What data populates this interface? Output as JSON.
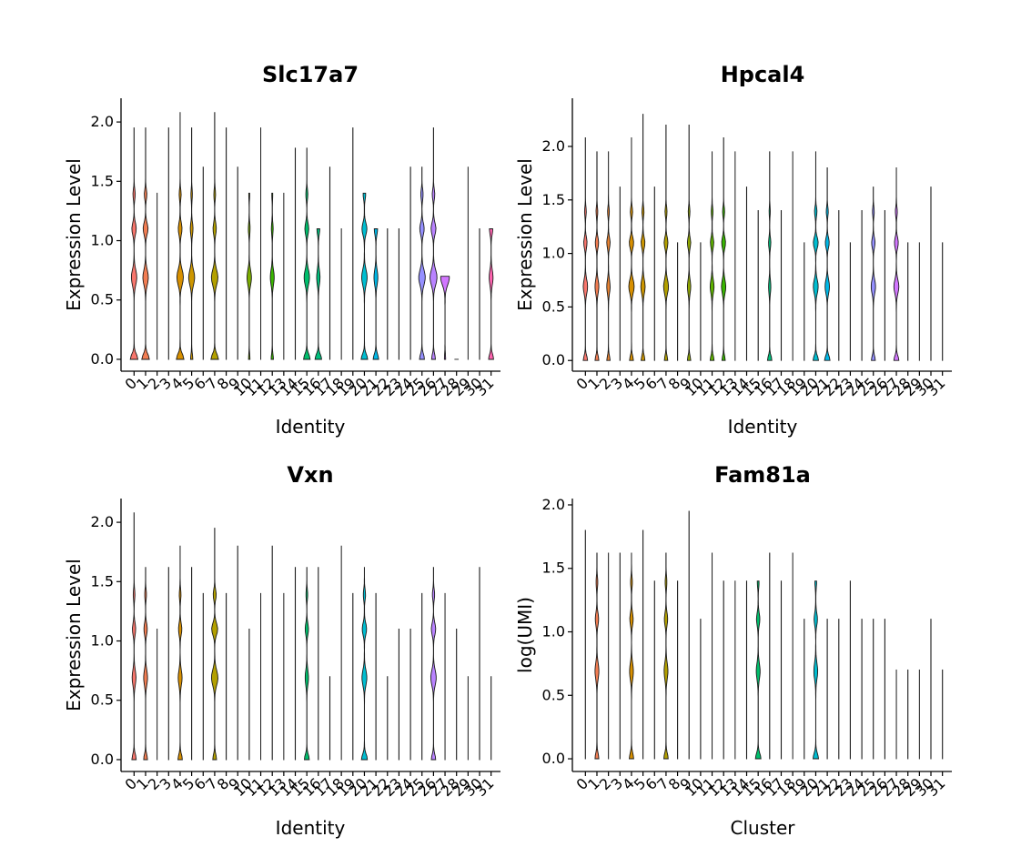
{
  "panels": [
    {
      "id": "slc17a7",
      "title": "Slc17a7",
      "xlabel": "Identity",
      "ylabel": "Expression Level",
      "ylim": [
        -0.1,
        2.2
      ],
      "yticks": [
        "0.0",
        "0.5",
        "1.0",
        "1.5",
        "2.0"
      ],
      "categories": [
        "0",
        "1",
        "2",
        "3",
        "4",
        "5",
        "6",
        "7",
        "8",
        "9",
        "10",
        "11",
        "12",
        "13",
        "14",
        "15",
        "16",
        "17",
        "18",
        "19",
        "20",
        "21",
        "22",
        "23",
        "24",
        "25",
        "26",
        "27",
        "28",
        "29",
        "30",
        "31"
      ],
      "max": [
        1.95,
        1.95,
        1.4,
        1.95,
        2.08,
        1.95,
        1.62,
        2.08,
        1.95,
        1.62,
        1.4,
        1.95,
        1.4,
        1.4,
        1.78,
        1.78,
        1.1,
        1.62,
        1.1,
        1.95,
        1.4,
        1.1,
        1.1,
        1.1,
        1.62,
        1.62,
        1.95,
        0.7,
        0,
        1.62,
        1.1,
        1.1
      ],
      "shape": [
        [
          0.7,
          0.5,
          0.4
        ],
        [
          0.7,
          0.5,
          0.45
        ],
        [
          0,
          0,
          0
        ],
        [
          0,
          0,
          0
        ],
        [
          0.7,
          0.6,
          0.35
        ],
        [
          0.2,
          0.55,
          0.25
        ],
        [
          0,
          0,
          0
        ],
        [
          0.7,
          0.6,
          0.3
        ],
        [
          0,
          0,
          0
        ],
        [
          0,
          0,
          0
        ],
        [
          0.12,
          0.4,
          0.15
        ],
        [
          0,
          0,
          0
        ],
        [
          0.2,
          0.35,
          0.15
        ],
        [
          0,
          0,
          0
        ],
        [
          0,
          0,
          0
        ],
        [
          0.6,
          0.5,
          0.35
        ],
        [
          0.6,
          0.3,
          0.25
        ],
        [
          0,
          0,
          0
        ],
        [
          0,
          0,
          0
        ],
        [
          0,
          0,
          0
        ],
        [
          0.6,
          0.5,
          0.45
        ],
        [
          0.5,
          0.35,
          0.3
        ],
        [
          0,
          0,
          0
        ],
        [
          0,
          0,
          0
        ],
        [
          0,
          0,
          0
        ],
        [
          0.45,
          0.6,
          0.4
        ],
        [
          0.35,
          0.65,
          0.45
        ],
        [
          0.1,
          0.8,
          0.6
        ],
        [
          0,
          0,
          0
        ],
        [
          0,
          0,
          0
        ],
        [
          0,
          0,
          0
        ],
        [
          0.45,
          0.35,
          0.3
        ]
      ]
    },
    {
      "id": "hpcal4",
      "title": "Hpcal4",
      "xlabel": "Identity",
      "ylabel": "Expression Level",
      "ylim": [
        -0.1,
        2.45
      ],
      "yticks": [
        "0.0",
        "0.5",
        "1.0",
        "1.5",
        "2.0"
      ],
      "categories": [
        "0",
        "1",
        "2",
        "3",
        "4",
        "5",
        "6",
        "7",
        "8",
        "9",
        "10",
        "11",
        "12",
        "13",
        "14",
        "15",
        "16",
        "17",
        "18",
        "19",
        "20",
        "21",
        "22",
        "23",
        "24",
        "25",
        "26",
        "27",
        "28",
        "29",
        "30",
        "31"
      ],
      "max": [
        2.08,
        1.95,
        1.95,
        1.62,
        2.08,
        2.3,
        1.62,
        2.2,
        1.1,
        2.2,
        1.1,
        1.95,
        2.08,
        1.95,
        1.62,
        1.4,
        1.95,
        1.4,
        1.95,
        1.1,
        1.95,
        1.8,
        1.4,
        1.1,
        1.4,
        1.62,
        1.4,
        1.8,
        1.1,
        1.1,
        1.62,
        1.1
      ],
      "shape": [
        [
          0.4,
          0.4,
          0.3
        ],
        [
          0.35,
          0.35,
          0.3
        ],
        [
          0.3,
          0.3,
          0.3
        ],
        [
          0,
          0,
          0
        ],
        [
          0.35,
          0.5,
          0.4
        ],
        [
          0.35,
          0.4,
          0.35
        ],
        [
          0,
          0,
          0
        ],
        [
          0.3,
          0.45,
          0.35
        ],
        [
          0,
          0,
          0
        ],
        [
          0.3,
          0.3,
          0.3
        ],
        [
          0,
          0,
          0
        ],
        [
          0.35,
          0.35,
          0.3
        ],
        [
          0.3,
          0.4,
          0.35
        ],
        [
          0,
          0,
          0
        ],
        [
          0,
          0,
          0
        ],
        [
          0,
          0,
          0
        ],
        [
          0.4,
          0.2,
          0.2
        ],
        [
          0,
          0,
          0
        ],
        [
          0,
          0,
          0
        ],
        [
          0,
          0,
          0
        ],
        [
          0.5,
          0.45,
          0.45
        ],
        [
          0.5,
          0.4,
          0.35
        ],
        [
          0,
          0,
          0
        ],
        [
          0,
          0,
          0
        ],
        [
          0,
          0,
          0
        ],
        [
          0.35,
          0.4,
          0.3
        ],
        [
          0,
          0,
          0
        ],
        [
          0.45,
          0.45,
          0.35
        ],
        [
          0,
          0,
          0
        ],
        [
          0,
          0,
          0
        ],
        [
          0,
          0,
          0
        ],
        [
          0,
          0,
          0
        ]
      ]
    },
    {
      "id": "vxn",
      "title": "Vxn",
      "xlabel": "Identity",
      "ylabel": "Expression Level",
      "ylim": [
        -0.1,
        2.2
      ],
      "yticks": [
        "0.0",
        "0.5",
        "1.0",
        "1.5",
        "2.0"
      ],
      "categories": [
        "0",
        "1",
        "2",
        "3",
        "4",
        "5",
        "6",
        "7",
        "8",
        "9",
        "10",
        "11",
        "12",
        "13",
        "14",
        "15",
        "16",
        "17",
        "18",
        "19",
        "20",
        "21",
        "22",
        "23",
        "24",
        "25",
        "26",
        "27",
        "28",
        "29",
        "30",
        "31"
      ],
      "max": [
        2.08,
        1.62,
        1.1,
        1.62,
        1.8,
        1.62,
        1.4,
        1.95,
        1.4,
        1.8,
        1.1,
        1.4,
        1.8,
        1.4,
        1.62,
        1.62,
        1.62,
        0.7,
        1.8,
        1.4,
        1.62,
        1.4,
        0.7,
        1.1,
        1.1,
        1.4,
        1.62,
        1.4,
        1.1,
        0.7,
        1.62,
        0.7
      ],
      "shape": [
        [
          0.4,
          0.35,
          0.3
        ],
        [
          0.35,
          0.35,
          0.3
        ],
        [
          0,
          0,
          0
        ],
        [
          0,
          0,
          0
        ],
        [
          0.4,
          0.35,
          0.3
        ],
        [
          0,
          0,
          0
        ],
        [
          0,
          0,
          0
        ],
        [
          0.35,
          0.6,
          0.55
        ],
        [
          0,
          0,
          0
        ],
        [
          0,
          0,
          0
        ],
        [
          0,
          0,
          0
        ],
        [
          0,
          0,
          0
        ],
        [
          0,
          0,
          0
        ],
        [
          0,
          0,
          0
        ],
        [
          0,
          0,
          0
        ],
        [
          0.45,
          0.3,
          0.3
        ],
        [
          0,
          0,
          0
        ],
        [
          0,
          0,
          0
        ],
        [
          0,
          0,
          0
        ],
        [
          0,
          0,
          0
        ],
        [
          0.55,
          0.45,
          0.4
        ],
        [
          0,
          0,
          0
        ],
        [
          0,
          0,
          0
        ],
        [
          0,
          0,
          0
        ],
        [
          0,
          0,
          0
        ],
        [
          0,
          0,
          0
        ],
        [
          0.4,
          0.5,
          0.4
        ],
        [
          0,
          0,
          0
        ],
        [
          0,
          0,
          0
        ],
        [
          0,
          0,
          0
        ],
        [
          0,
          0,
          0
        ],
        [
          0,
          0,
          0
        ]
      ]
    },
    {
      "id": "fam81a",
      "title": "Fam81a",
      "xlabel": "Cluster",
      "ylabel": "log(UMI)",
      "ylim": [
        -0.1,
        2.05
      ],
      "yticks": [
        "0.0",
        "0.5",
        "1.0",
        "1.5",
        "2.0"
      ],
      "categories": [
        "0",
        "1",
        "2",
        "3",
        "4",
        "5",
        "6",
        "7",
        "8",
        "9",
        "10",
        "11",
        "12",
        "13",
        "14",
        "15",
        "16",
        "17",
        "18",
        "19",
        "20",
        "21",
        "22",
        "23",
        "24",
        "25",
        "26",
        "27",
        "28",
        "29",
        "30",
        "31"
      ],
      "max": [
        1.8,
        1.62,
        1.62,
        1.62,
        1.62,
        1.8,
        1.4,
        1.62,
        1.4,
        1.95,
        1.1,
        1.62,
        1.4,
        1.4,
        1.4,
        1.4,
        1.62,
        1.4,
        1.62,
        1.1,
        1.4,
        1.1,
        1.1,
        1.4,
        1.1,
        1.1,
        1.1,
        0.7,
        0.7,
        0.7,
        1.1,
        0.7
      ],
      "shape": [
        [
          0,
          0,
          0
        ],
        [
          0.35,
          0.35,
          0.3
        ],
        [
          0,
          0,
          0
        ],
        [
          0,
          0,
          0
        ],
        [
          0.4,
          0.35,
          0.3
        ],
        [
          0,
          0,
          0
        ],
        [
          0,
          0,
          0
        ],
        [
          0.4,
          0.35,
          0.3
        ],
        [
          0,
          0,
          0
        ],
        [
          0,
          0,
          0
        ],
        [
          0,
          0,
          0
        ],
        [
          0,
          0,
          0
        ],
        [
          0,
          0,
          0
        ],
        [
          0,
          0,
          0
        ],
        [
          0,
          0,
          0
        ],
        [
          0.5,
          0.35,
          0.3
        ],
        [
          0,
          0,
          0
        ],
        [
          0,
          0,
          0
        ],
        [
          0,
          0,
          0
        ],
        [
          0,
          0,
          0
        ],
        [
          0.5,
          0.35,
          0.3
        ],
        [
          0,
          0,
          0
        ],
        [
          0,
          0,
          0
        ],
        [
          0,
          0,
          0
        ],
        [
          0,
          0,
          0
        ],
        [
          0,
          0,
          0
        ],
        [
          0,
          0,
          0
        ],
        [
          0,
          0,
          0
        ],
        [
          0,
          0,
          0
        ],
        [
          0,
          0,
          0
        ],
        [
          0,
          0,
          0
        ],
        [
          0,
          0,
          0
        ]
      ]
    }
  ],
  "colors": [
    "#F8766D",
    "#F27D52",
    "#EA8331",
    "#E18A00",
    "#D89000",
    "#CD9600",
    "#C09B00",
    "#B3A000",
    "#A3A500",
    "#93AA00",
    "#7CAE00",
    "#5EB300",
    "#39B600",
    "#00B81F",
    "#00BB4E",
    "#00BE6C",
    "#00BF7D",
    "#00C08B",
    "#00C19A",
    "#00C0B8",
    "#00BDD0",
    "#00B8E7",
    "#00B0F6",
    "#00A5FF",
    "#619CFF",
    "#9590FF",
    "#B983FF",
    "#D277FF",
    "#E76BF3",
    "#F564E3",
    "#FF61C9",
    "#FF64B0"
  ],
  "chart_data": [
    {
      "type": "violin",
      "title": "Slc17a7",
      "xlabel": "Identity",
      "ylabel": "Expression Level",
      "categories": [
        "0",
        "1",
        "2",
        "3",
        "4",
        "5",
        "6",
        "7",
        "8",
        "9",
        "10",
        "11",
        "12",
        "13",
        "14",
        "15",
        "16",
        "17",
        "18",
        "19",
        "20",
        "21",
        "22",
        "23",
        "24",
        "25",
        "26",
        "27",
        "28",
        "29",
        "30",
        "31"
      ],
      "ylim": [
        -0.1,
        2.2
      ],
      "values_max": [
        1.95,
        1.95,
        1.4,
        1.95,
        2.08,
        1.95,
        1.62,
        2.08,
        1.95,
        1.62,
        1.4,
        1.95,
        1.4,
        1.4,
        1.78,
        1.78,
        1.1,
        1.62,
        1.1,
        1.95,
        1.4,
        1.1,
        1.1,
        1.1,
        1.62,
        1.62,
        1.95,
        0.7,
        0,
        1.62,
        1.1,
        1.1
      ]
    },
    {
      "type": "violin",
      "title": "Hpcal4",
      "xlabel": "Identity",
      "ylabel": "Expression Level",
      "categories": [
        "0",
        "1",
        "2",
        "3",
        "4",
        "5",
        "6",
        "7",
        "8",
        "9",
        "10",
        "11",
        "12",
        "13",
        "14",
        "15",
        "16",
        "17",
        "18",
        "19",
        "20",
        "21",
        "22",
        "23",
        "24",
        "25",
        "26",
        "27",
        "28",
        "29",
        "30",
        "31"
      ],
      "ylim": [
        -0.1,
        2.45
      ],
      "values_max": [
        2.08,
        1.95,
        1.95,
        1.62,
        2.08,
        2.3,
        1.62,
        2.2,
        1.1,
        2.2,
        1.1,
        1.95,
        2.08,
        1.95,
        1.62,
        1.4,
        1.95,
        1.4,
        1.95,
        1.1,
        1.95,
        1.8,
        1.4,
        1.1,
        1.4,
        1.62,
        1.4,
        1.8,
        1.1,
        1.1,
        1.62,
        1.1
      ]
    },
    {
      "type": "violin",
      "title": "Vxn",
      "xlabel": "Identity",
      "ylabel": "Expression Level",
      "categories": [
        "0",
        "1",
        "2",
        "3",
        "4",
        "5",
        "6",
        "7",
        "8",
        "9",
        "10",
        "11",
        "12",
        "13",
        "14",
        "15",
        "16",
        "17",
        "18",
        "19",
        "20",
        "21",
        "22",
        "23",
        "24",
        "25",
        "26",
        "27",
        "28",
        "29",
        "30",
        "31"
      ],
      "ylim": [
        -0.1,
        2.2
      ],
      "values_max": [
        2.08,
        1.62,
        1.1,
        1.62,
        1.8,
        1.62,
        1.4,
        1.95,
        1.4,
        1.8,
        1.1,
        1.4,
        1.8,
        1.4,
        1.62,
        1.62,
        1.62,
        0.7,
        1.8,
        1.4,
        1.62,
        1.4,
        0.7,
        1.1,
        1.1,
        1.4,
        1.62,
        1.4,
        1.1,
        0.7,
        1.62,
        0.7
      ]
    },
    {
      "type": "violin",
      "title": "Fam81a",
      "xlabel": "Cluster",
      "ylabel": "log(UMI)",
      "categories": [
        "0",
        "1",
        "2",
        "3",
        "4",
        "5",
        "6",
        "7",
        "8",
        "9",
        "10",
        "11",
        "12",
        "13",
        "14",
        "15",
        "16",
        "17",
        "18",
        "19",
        "20",
        "21",
        "22",
        "23",
        "24",
        "25",
        "26",
        "27",
        "28",
        "29",
        "30",
        "31"
      ],
      "ylim": [
        -0.1,
        2.05
      ],
      "values_max": [
        1.8,
        1.62,
        1.62,
        1.62,
        1.62,
        1.8,
        1.4,
        1.62,
        1.4,
        1.95,
        1.1,
        1.62,
        1.4,
        1.4,
        1.4,
        1.4,
        1.62,
        1.4,
        1.62,
        1.1,
        1.4,
        1.1,
        1.1,
        1.4,
        1.1,
        1.1,
        1.1,
        0.7,
        0.7,
        0.7,
        1.1,
        0.7
      ]
    }
  ]
}
